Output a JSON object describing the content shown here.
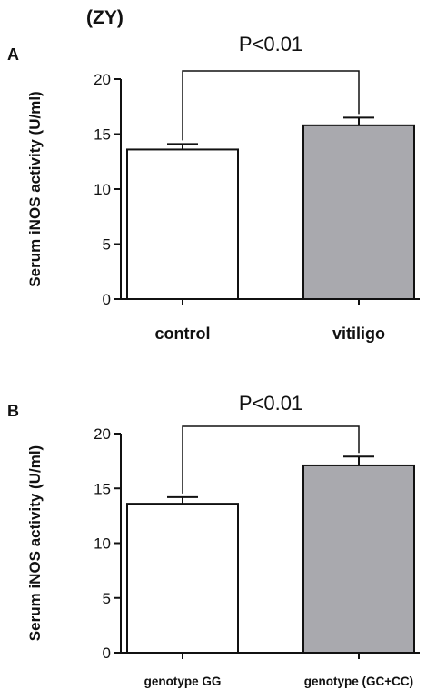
{
  "figure": {
    "title": "(ZY)",
    "colors": {
      "control_bar": "#ffffff",
      "case_bar": "#a9a9ae",
      "stroke": "#111111"
    }
  },
  "chart_data": [
    {
      "type": "bar",
      "panel": "A",
      "categories": [
        "control",
        "vitiligo"
      ],
      "values": [
        13.6,
        15.8
      ],
      "errors": [
        0.5,
        0.7
      ],
      "ylabel": "Serum iNOS activity (U/ml)",
      "ylim": [
        0,
        20
      ],
      "yticks": [
        0,
        5,
        10,
        15,
        20
      ],
      "significance": {
        "label": "P<0.01",
        "between": [
          0,
          1
        ]
      },
      "grid": false
    },
    {
      "type": "bar",
      "panel": "B",
      "categories": [
        "genotype GG",
        "genotype (GC+CC)"
      ],
      "values": [
        13.6,
        17.1
      ],
      "errors": [
        0.6,
        0.8
      ],
      "ylabel": "Serum iNOS activity (U/ml)",
      "ylim": [
        0,
        20
      ],
      "yticks": [
        0,
        5,
        10,
        15,
        20
      ],
      "significance": {
        "label": "P<0.01",
        "between": [
          0,
          1
        ]
      },
      "grid": false
    }
  ]
}
